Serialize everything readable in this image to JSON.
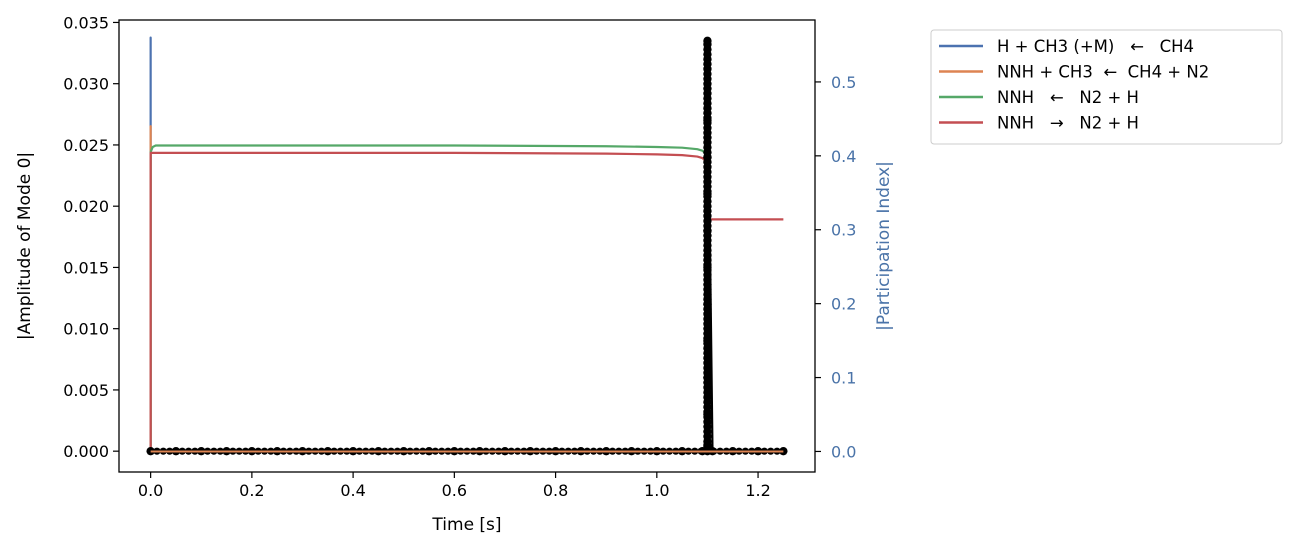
{
  "chart_data": {
    "type": "line",
    "xlabel": "Time [s]",
    "ylabel_left": "|Amplitude of Mode 0|",
    "ylabel_right": "|Participation Index|",
    "xlim": [
      -0.0625,
      1.3125
    ],
    "ylim_left": [
      -0.0017,
      0.0352
    ],
    "ylim_right": [
      -0.0278,
      0.5838
    ],
    "x_ticks": [
      0.0,
      0.2,
      0.4,
      0.6,
      0.8,
      1.0,
      1.2
    ],
    "x_tick_labels": [
      "0.0",
      "0.2",
      "0.4",
      "0.6",
      "0.8",
      "1.0",
      "1.2"
    ],
    "y_left_ticks": [
      0.0,
      0.005,
      0.01,
      0.015,
      0.02,
      0.025,
      0.03,
      0.035
    ],
    "y_left_tick_labels": [
      "0.000",
      "0.005",
      "0.010",
      "0.015",
      "0.020",
      "0.025",
      "0.030",
      "0.035"
    ],
    "y_right_ticks": [
      0.0,
      0.1,
      0.2,
      0.3,
      0.4,
      0.5
    ],
    "y_right_tick_labels": [
      "0.0",
      "0.1",
      "0.2",
      "0.3",
      "0.4",
      "0.5"
    ],
    "right_axis_color": "#4a73a8",
    "legend_placement": "outside-top-right",
    "series": [
      {
        "name": "H + CH3 (+M)   ←   CH4",
        "color": "#4c72b0",
        "axis": "right",
        "x": [
          0.0,
          0.0,
          0.0,
          0.0005,
          1.25
        ],
        "y": [
          0.0,
          0.56,
          0.0,
          0.0,
          0.0
        ]
      },
      {
        "name": "NNH + CH3  ←  CH4 + N2",
        "color": "#dd8452",
        "axis": "right",
        "x": [
          0.0,
          0.0,
          0.0,
          0.0005,
          1.25
        ],
        "y": [
          0.0,
          0.44,
          0.0,
          0.0,
          0.0
        ]
      },
      {
        "name": "NNH   ←   N2 + H",
        "color": "#55a868",
        "axis": "right",
        "x": [
          0.0,
          0.0,
          0.004,
          0.01,
          0.3,
          0.6,
          0.9,
          1.0,
          1.05,
          1.08,
          1.09,
          1.097,
          1.1
        ],
        "y": [
          0.0,
          0.405,
          0.412,
          0.414,
          0.414,
          0.414,
          0.413,
          0.412,
          0.411,
          0.409,
          0.407,
          0.403,
          0.39
        ]
      },
      {
        "name": "NNH   →   N2 + H",
        "color": "#c44e52",
        "axis": "right",
        "x": [
          0.0,
          0.0,
          0.005,
          0.3,
          0.6,
          0.9,
          1.0,
          1.05,
          1.08,
          1.09,
          1.097,
          1.1,
          1.1,
          1.102,
          1.25
        ],
        "y": [
          0.0,
          0.404,
          0.404,
          0.404,
          0.404,
          0.403,
          0.402,
          0.401,
          0.399,
          0.397,
          0.393,
          0.385,
          0.33,
          0.314,
          0.314
        ]
      },
      {
        "name": "",
        "color": "#000000",
        "axis": "left",
        "marker": "o",
        "description_points": "amplitude markers",
        "x": [
          0.0,
          0.05,
          0.1,
          0.15,
          0.2,
          0.25,
          0.3,
          0.35,
          0.4,
          0.45,
          0.5,
          0.55,
          0.6,
          0.65,
          0.7,
          0.75,
          0.8,
          0.85,
          0.9,
          0.95,
          1.0,
          1.05,
          1.09,
          1.1,
          1.1,
          1.1,
          1.1,
          1.1,
          1.1,
          1.1,
          1.1,
          1.1,
          1.1,
          1.1,
          1.11,
          1.15,
          1.2,
          1.25
        ],
        "y": [
          0.0,
          0.0,
          0.0,
          0.0,
          0.0,
          0.0,
          0.0,
          0.0,
          0.0,
          0.0,
          0.0,
          0.0,
          0.0,
          0.0,
          0.0,
          0.0,
          0.0,
          0.0,
          0.0,
          0.0,
          0.0,
          0.0,
          0.0,
          0.0005,
          0.003,
          0.006,
          0.009,
          0.012,
          0.015,
          0.018,
          0.021,
          0.024,
          0.027,
          0.0335,
          0.0,
          0.0,
          0.0,
          0.0
        ]
      }
    ]
  }
}
